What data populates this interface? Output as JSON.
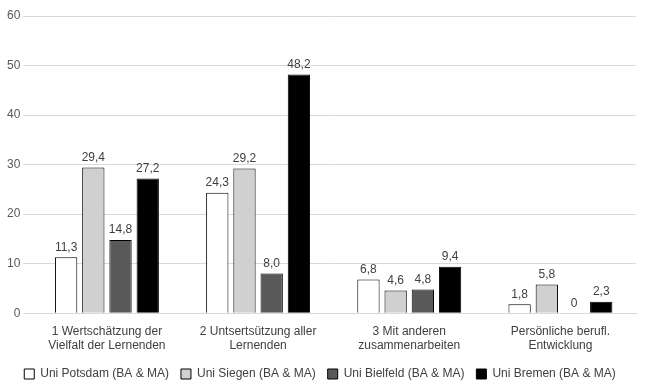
{
  "chart_data": {
    "type": "bar",
    "categories": [
      "1 Wertschätzung der Vielfalt der Lernenden",
      "2 Untsertsützung aller Lernenden",
      "3 Mit anderen zusammenarbeiten",
      "Persönliche berufl. Entwicklung"
    ],
    "series": [
      {
        "name": "Uni Potsdam (BA & MA)",
        "color": "#ffffff",
        "values": [
          11.3,
          24.3,
          6.8,
          1.8
        ],
        "value_labels": [
          "11,3",
          "24,3",
          "6,8",
          "1,8"
        ]
      },
      {
        "name": "Uni Siegen (BA & MA)",
        "color": "#d0d0d0",
        "values": [
          29.4,
          29.2,
          4.6,
          5.8
        ],
        "value_labels": [
          "29,4",
          "29,2",
          "4,6",
          "5,8"
        ]
      },
      {
        "name": "Uni Bielfeld (BA & MA)",
        "color": "#595959",
        "values": [
          14.8,
          8.0,
          4.8,
          0
        ],
        "value_labels": [
          "14,8",
          "8,0",
          "4,8",
          "0"
        ]
      },
      {
        "name": "Uni Bremen (BA & MA)",
        "color": "#000000",
        "values": [
          27.2,
          48.2,
          9.4,
          2.3
        ],
        "value_labels": [
          "27,2",
          "48,2",
          "9,4",
          "2,3"
        ]
      }
    ],
    "ylim": [
      0,
      60
    ],
    "yticks": [
      0,
      10,
      20,
      30,
      40,
      50,
      60
    ],
    "grid": true,
    "legend": "bottom",
    "data_labels": true
  }
}
